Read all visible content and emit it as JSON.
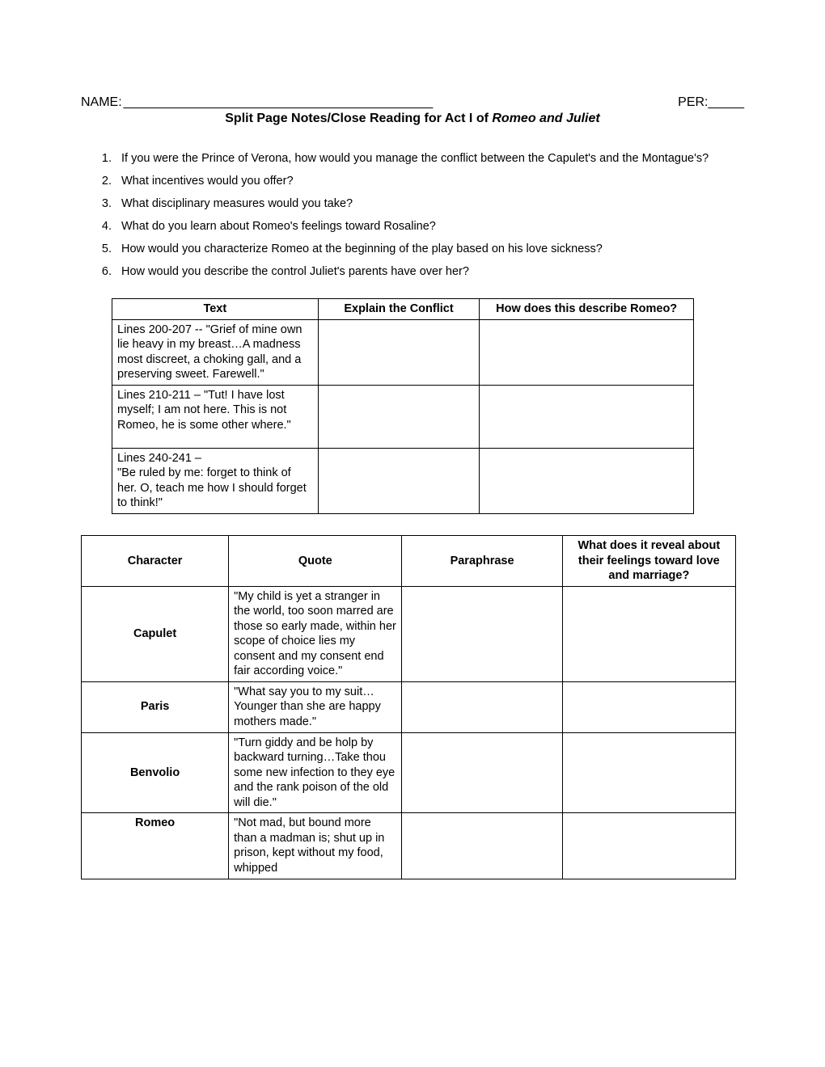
{
  "header": {
    "name_label": "NAME:",
    "name_blank": "___________________________________________",
    "per_label": "PER:",
    "per_blank": "_____",
    "title_prefix": "Split Page Notes/Close Reading for Act I of ",
    "title_italic": "Romeo and Juliet"
  },
  "questions": [
    "If you were the Prince of Verona, how would you manage the conflict between the Capulet's and the Montague's?",
    "What incentives would you offer?",
    "What disciplinary measures would you take?",
    "What do you learn about Romeo's feelings toward Rosaline?",
    "How would you characterize Romeo at the beginning of the play based on his love sickness?",
    "How would you describe the control Juliet's parents have over her?"
  ],
  "table1": {
    "headers": [
      "Text",
      "Explain the Conflict",
      "How does this describe Romeo?"
    ],
    "rows": [
      "Lines 200-207 -- \"Grief of mine own lie heavy in my breast…A madness most discreet, a choking gall, and a preserving sweet. Farewell.\"",
      "Lines 210-211 – \"Tut!  I have lost myself; I am not here.  This is not Romeo, he is some other where.\"",
      "Lines 240-241 –\n\"Be ruled by me:  forget to think of her.  O, teach me how I should forget to think!\""
    ]
  },
  "table2": {
    "headers": [
      "Character",
      "Quote",
      "Paraphrase",
      "What does it reveal about their feelings toward love and marriage?"
    ],
    "rows": [
      {
        "character": "Capulet",
        "quote": "\"My child is yet a stranger in the world, too soon marred are those so early made, within her scope of choice lies my consent and my consent end fair according voice.\""
      },
      {
        "character": "Paris",
        "quote": "\"What say you to my suit…Younger than she are happy mothers made.\""
      },
      {
        "character": "Benvolio",
        "quote": "\"Turn giddy and be holp by backward turning…Take thou some new infection to they eye and the rank poison of the old will die.\""
      },
      {
        "character": "Romeo",
        "quote": "\"Not mad, but bound more than a madman is; shut up in prison, kept without my food, whipped"
      }
    ]
  }
}
